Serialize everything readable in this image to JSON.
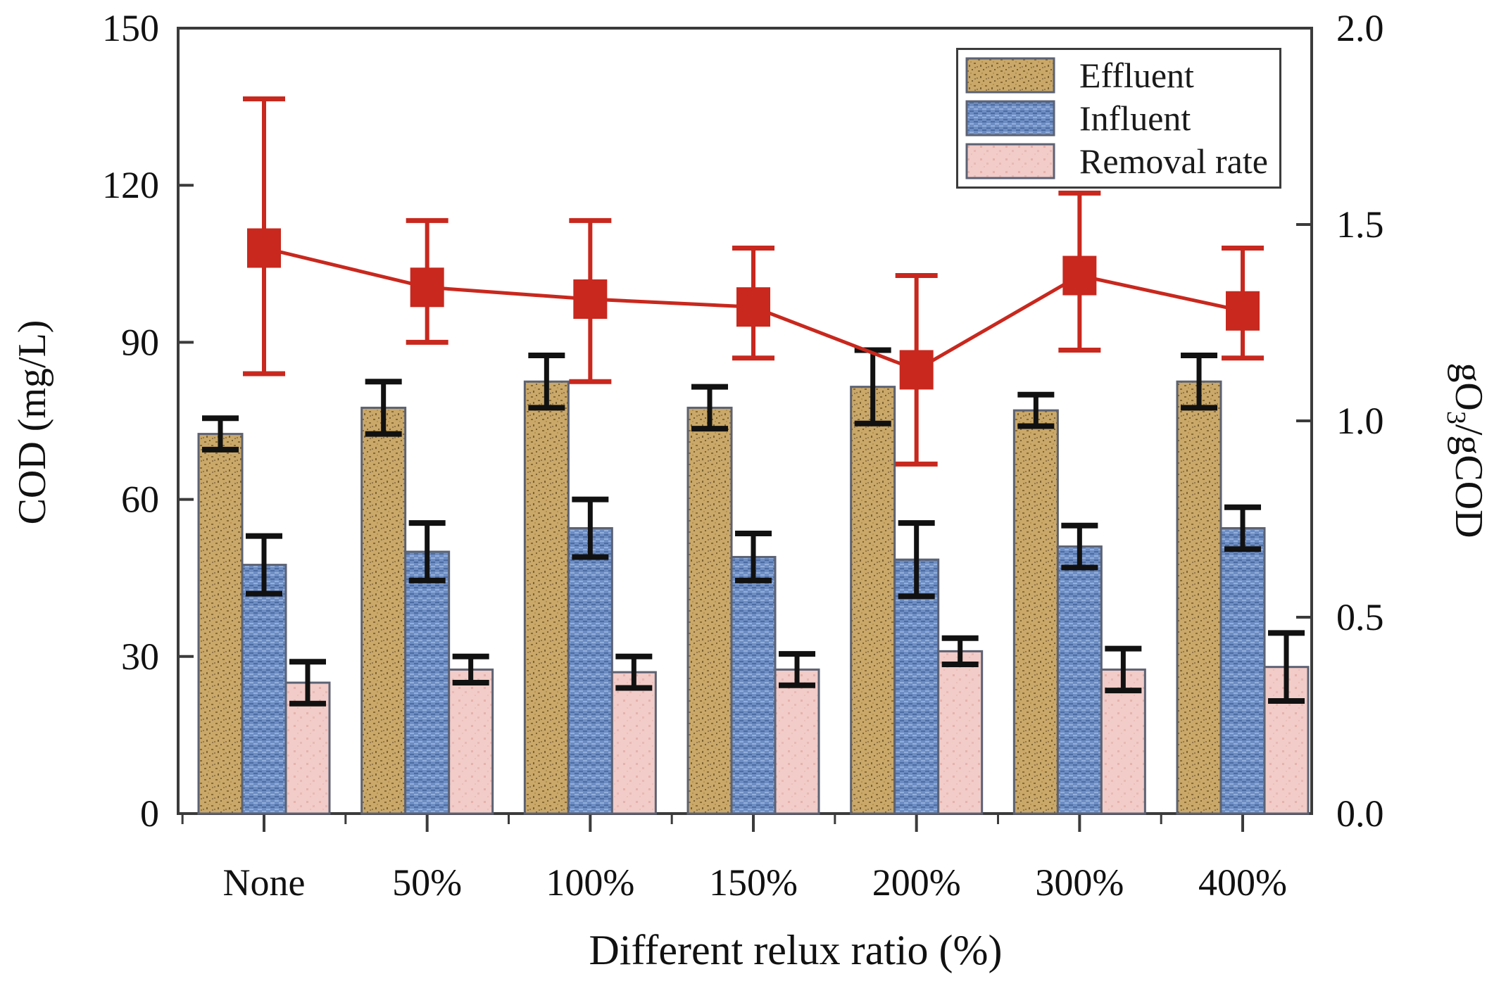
{
  "figure": {
    "background": "#ffffff",
    "colors": {
      "axis": "#3b3b3b",
      "error_bar": "#111111",
      "line": "#c8281e",
      "bar_border": "#5c6273",
      "effluent_fill": "#c9a86a",
      "influent_fill": "#6d8dc3",
      "removal_fill": "#f2ccc8"
    }
  },
  "left_axis_title": "COD (mg/L)",
  "right_axis_title": {
    "prefix": "gO",
    "sub": "3",
    "suffix": "/gCOD"
  },
  "x_axis_title": "Different relux ratio (%)",
  "legend": {
    "items": [
      {
        "label": "Effluent",
        "swatch": "effluent-pattern"
      },
      {
        "label": "Influent",
        "swatch": "influent-pattern"
      },
      {
        "label": "Removal rate",
        "swatch": "removal-pattern"
      }
    ]
  },
  "chart_data": {
    "type": "bar+line",
    "title": "",
    "categories": [
      "None",
      "50%",
      "100%",
      "150%",
      "200%",
      "300%",
      "400%"
    ],
    "bar_series": [
      {
        "name": "Effluent",
        "pattern": "pat-effluent",
        "color": "#c9a86a",
        "values": [
          72.5,
          77.5,
          82.5,
          77.5,
          81.5,
          77,
          82.5
        ],
        "errors": [
          3,
          5,
          5,
          4,
          7,
          3,
          5
        ]
      },
      {
        "name": "Influent",
        "pattern": "pat-influent",
        "color": "#6d8dc3",
        "values": [
          47.5,
          50,
          54.5,
          49,
          48.5,
          51,
          54.5
        ],
        "errors": [
          5.5,
          5.5,
          5.5,
          4.5,
          7,
          4,
          4
        ]
      },
      {
        "name": "Removal rate",
        "pattern": "pat-removal",
        "color": "#f2ccc8",
        "values": [
          25,
          27.5,
          27,
          27.5,
          31,
          27.5,
          28
        ],
        "errors": [
          4,
          2.5,
          3,
          3,
          2.5,
          4,
          6.5
        ]
      }
    ],
    "line_series": {
      "axis": "right",
      "color": "#c8281e",
      "values": [
        1.44,
        1.34,
        1.31,
        1.29,
        1.13,
        1.37,
        1.28
      ],
      "err_up": [
        0.38,
        0.17,
        0.2,
        0.15,
        0.24,
        0.21,
        0.16
      ],
      "err_down": [
        0.32,
        0.14,
        0.21,
        0.13,
        0.24,
        0.19,
        0.12
      ]
    },
    "left_axis": {
      "label": "COD (mg/L)",
      "min": 0,
      "max": 150,
      "ticks": [
        0,
        30,
        60,
        90,
        120,
        150
      ]
    },
    "right_axis": {
      "label": "gO3/gCOD",
      "min": 0.0,
      "max": 2.0,
      "ticks": [
        0.0,
        0.5,
        1.0,
        1.5,
        2.0
      ],
      "tick_labels": [
        "0.0",
        "0.5",
        "1.0",
        "1.5",
        "2.0"
      ]
    },
    "x_axis": {
      "label": "Different relux ratio (%)"
    },
    "legend_position": "top-right",
    "grid": false
  }
}
